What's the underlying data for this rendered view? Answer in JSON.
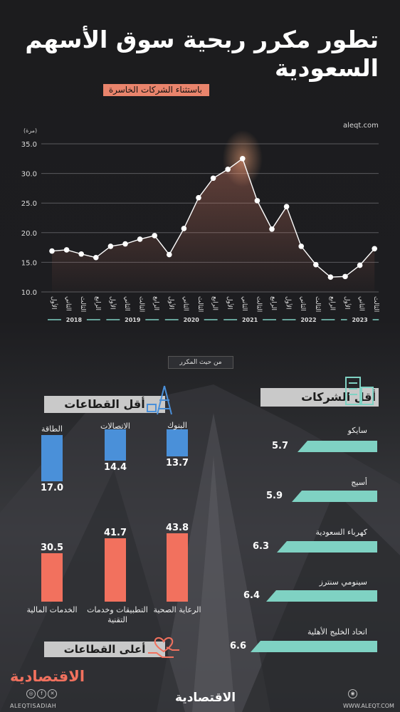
{
  "title_line1": "تطور مكرر ربحية سوق الأسهم",
  "title_line2": "السعودية",
  "subtitle": "باستثناء الشركات الخاسرة",
  "site_tag": "aleqt.com",
  "unit_label": "(مرة)",
  "mid_tag": "من حيث المكرر",
  "chart_data": {
    "type": "line",
    "y_ticks": [
      "35.0",
      "30.0",
      "25.0",
      "20.0",
      "15.0",
      "10.0"
    ],
    "ylim": [
      10,
      35
    ],
    "x_quarter_labels": [
      "الأول",
      "الثاني",
      "الثالث",
      "الرابع",
      "الأول",
      "الثاني",
      "الثالث",
      "الرابع",
      "الأول",
      "الثاني",
      "الثالث",
      "الرابع",
      "الأول",
      "الثاني",
      "الثالث",
      "الرابع",
      "الأول",
      "الثاني",
      "الثالث",
      "الرابع",
      "الأول",
      "الثاني",
      "الثالث"
    ],
    "years": [
      "2018",
      "2019",
      "2020",
      "2021",
      "2022",
      "2023"
    ],
    "values": [
      16.9,
      17.1,
      16.4,
      15.8,
      17.7,
      18.1,
      18.9,
      19.5,
      16.3,
      20.7,
      25.9,
      29.2,
      30.7,
      32.5,
      25.4,
      20.6,
      24.4,
      17.7,
      14.6,
      12.5,
      12.6,
      14.5,
      17.3
    ],
    "grid": true
  },
  "low_sectors": {
    "header": "أقل القطاعات",
    "items": [
      {
        "name": "الطاقة",
        "value": "17.0"
      },
      {
        "name": "الاتصالات",
        "value": "14.4"
      },
      {
        "name": "البنوك",
        "value": "13.7"
      }
    ]
  },
  "high_sectors": {
    "header": "أعلى القطاعات",
    "items": [
      {
        "name": "الخدمات المالية",
        "value": "30.5"
      },
      {
        "name": "التطبيقات وخدمات التقنية",
        "value": "41.7"
      },
      {
        "name": "الرعاية الصحية",
        "value": "43.8"
      }
    ]
  },
  "low_companies": {
    "header": "أقل الشركات",
    "items": [
      {
        "name": "سايكو",
        "value": "5.7"
      },
      {
        "name": "أسيج",
        "value": "5.9"
      },
      {
        "name": "كهرباء السعودية",
        "value": "6.3"
      },
      {
        "name": "سينومي سنترز",
        "value": "6.4"
      },
      {
        "name": "اتحاد الخليج الأهلية",
        "value": "6.6"
      }
    ]
  },
  "brand": {
    "name": "الاقتصادية",
    "handle": "ALEQTISADIAH",
    "url": "WWW.ALEQT.COM"
  },
  "colors": {
    "line": "#ffffff",
    "blue": "#4a90d9",
    "red": "#f2715e",
    "teal": "#7fd2c3",
    "accent": "#e9846c"
  }
}
